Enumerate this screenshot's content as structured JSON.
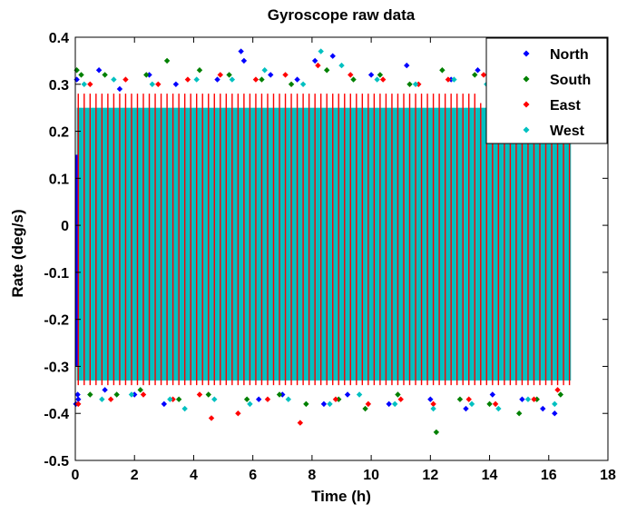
{
  "chart_data": {
    "type": "scatter",
    "title": "Gyroscope raw data",
    "xlabel": "Time (h)",
    "ylabel": "Rate (deg/s)",
    "xlim": [
      0,
      18
    ],
    "ylim": [
      -0.5,
      0.4
    ],
    "xticks": [
      0,
      2,
      4,
      6,
      8,
      10,
      12,
      14,
      16,
      18
    ],
    "yticks": [
      -0.5,
      -0.4,
      -0.3,
      -0.2,
      -0.1,
      0,
      0.1,
      0.2,
      0.3,
      0.4
    ],
    "xtick_labels": [
      "0",
      "2",
      "4",
      "6",
      "8",
      "10",
      "12",
      "14",
      "16",
      "18"
    ],
    "ytick_labels": [
      "-0.5",
      "-0.4",
      "-0.3",
      "-0.2",
      "-0.1",
      "0",
      "0.1",
      "0.2",
      "0.3",
      "0.4"
    ],
    "grid": false,
    "legend_position": "top-right",
    "series": [
      {
        "name": "North",
        "color": "#0000ff",
        "x": [
          0.02,
          0.05,
          0.08,
          0.1,
          0.8,
          1.0,
          1.5,
          2.0,
          2.5,
          3.0,
          3.4,
          4.8,
          5.6,
          5.7,
          6.2,
          6.6,
          7.0,
          7.5,
          8.1,
          8.4,
          8.7,
          9.2,
          10.0,
          10.6,
          11.2,
          12.0,
          12.7,
          13.2,
          13.6,
          14.1,
          14.6,
          15.1,
          15.6,
          15.8,
          16.2,
          16.4
        ],
        "y": [
          -0.38,
          0.31,
          -0.36,
          -0.37,
          0.33,
          -0.35,
          0.29,
          -0.36,
          0.32,
          -0.38,
          0.3,
          0.31,
          0.37,
          0.35,
          -0.37,
          0.32,
          -0.36,
          0.31,
          0.35,
          -0.38,
          0.36,
          -0.36,
          0.32,
          -0.38,
          0.34,
          -0.37,
          0.31,
          -0.39,
          0.33,
          -0.36,
          0.3,
          -0.37,
          0.31,
          -0.39,
          -0.4,
          0.3
        ]
      },
      {
        "name": "South",
        "color": "#008000",
        "x": [
          0.05,
          0.2,
          0.5,
          1.0,
          1.4,
          2.2,
          2.4,
          3.1,
          3.5,
          4.2,
          4.5,
          5.2,
          5.8,
          6.3,
          6.9,
          7.3,
          7.8,
          8.5,
          8.9,
          9.4,
          9.8,
          10.3,
          10.9,
          11.3,
          12.2,
          12.4,
          13.0,
          13.5,
          14.0,
          14.4,
          15.0,
          15.2,
          15.6,
          16.1,
          16.4
        ],
        "y": [
          0.33,
          0.32,
          -0.36,
          0.32,
          -0.36,
          -0.35,
          0.32,
          0.35,
          -0.37,
          0.33,
          -0.36,
          0.32,
          -0.37,
          0.31,
          -0.36,
          0.3,
          -0.38,
          0.33,
          -0.37,
          0.31,
          -0.39,
          0.32,
          -0.36,
          0.3,
          -0.44,
          0.33,
          -0.37,
          0.32,
          -0.38,
          0.31,
          -0.4,
          0.32,
          -0.37,
          0.33,
          -0.36
        ]
      },
      {
        "name": "East",
        "color": "#ff0000",
        "x": [
          0.1,
          0.5,
          1.2,
          1.7,
          2.3,
          2.8,
          3.3,
          3.8,
          4.2,
          4.6,
          4.9,
          5.5,
          6.1,
          6.5,
          7.1,
          7.6,
          8.2,
          8.8,
          9.3,
          9.9,
          10.4,
          11.0,
          11.6,
          12.1,
          12.6,
          13.3,
          13.8,
          14.2,
          14.9,
          15.5,
          16.0,
          16.3
        ],
        "y": [
          -0.38,
          0.3,
          -0.37,
          0.31,
          -0.36,
          0.3,
          -0.37,
          0.31,
          -0.36,
          -0.41,
          0.32,
          -0.4,
          0.31,
          -0.37,
          0.32,
          -0.42,
          0.34,
          -0.37,
          0.32,
          -0.38,
          0.31,
          -0.37,
          0.3,
          -0.38,
          0.31,
          -0.37,
          0.32,
          -0.38,
          0.3,
          -0.37,
          0.31,
          -0.35
        ]
      },
      {
        "name": "West",
        "color": "#00c0c0",
        "x": [
          0.3,
          0.9,
          1.3,
          1.9,
          2.6,
          3.2,
          3.7,
          4.1,
          4.7,
          5.3,
          5.9,
          6.4,
          7.2,
          7.7,
          8.3,
          8.6,
          9.0,
          9.6,
          10.2,
          10.8,
          11.5,
          12.1,
          12.8,
          13.4,
          13.9,
          14.3,
          14.8,
          15.3,
          15.9,
          16.2,
          16.5
        ],
        "y": [
          0.3,
          -0.37,
          0.31,
          -0.36,
          0.3,
          -0.37,
          -0.39,
          0.31,
          -0.37,
          0.31,
          -0.38,
          0.33,
          -0.37,
          0.3,
          0.37,
          -0.38,
          0.34,
          -0.36,
          0.31,
          -0.38,
          0.3,
          -0.39,
          0.31,
          -0.38,
          0.3,
          -0.39,
          0.31,
          -0.37,
          0.3,
          -0.38,
          0.29
        ]
      }
    ]
  }
}
